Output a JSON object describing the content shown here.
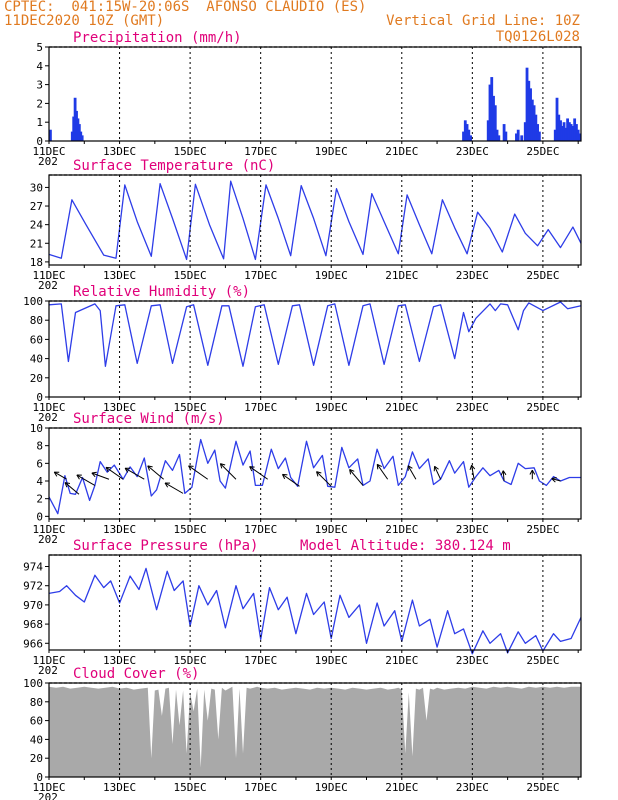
{
  "header": {
    "line1": "CPTEC:  041:15W-20:06S  AFONSO CLAUDIO (ES)",
    "line2": "11DEC2020 10Z (GMT)",
    "grid_note": "Vertical Grid Line: 10Z",
    "code": "TQ0126L028"
  },
  "colors": {
    "series": "#2e3de8",
    "title": "#e0007a",
    "header": "#e07a20",
    "cloud": "#a9a9a9",
    "bars": "#1f3ae6",
    "arrows": "#000000"
  },
  "x_axis": {
    "labels": [
      "11DEC",
      "13DEC",
      "15DEC",
      "17DEC",
      "19DEC",
      "21DEC",
      "23DEC",
      "25DEC"
    ],
    "label_days": [
      0,
      2,
      4,
      6,
      8,
      10,
      12,
      14
    ],
    "year_fragment": "202",
    "day_range": [
      0,
      15.08
    ]
  },
  "chart_data": [
    {
      "type": "bar",
      "title": "Precipitation (mm/h)",
      "ylim": [
        0,
        5
      ],
      "yticks": [
        0,
        1,
        2,
        3,
        4,
        5
      ],
      "bars": [
        {
          "day": 0.04,
          "value": 0.6
        },
        {
          "day": 0.66,
          "value": 0.5
        },
        {
          "day": 0.7,
          "value": 1.3
        },
        {
          "day": 0.74,
          "value": 2.3
        },
        {
          "day": 0.78,
          "value": 1.6
        },
        {
          "day": 0.82,
          "value": 1.2
        },
        {
          "day": 0.86,
          "value": 0.9
        },
        {
          "day": 0.9,
          "value": 0.5
        },
        {
          "day": 0.94,
          "value": 0.3
        },
        {
          "day": 11.75,
          "value": 0.5
        },
        {
          "day": 11.8,
          "value": 1.1
        },
        {
          "day": 11.85,
          "value": 0.9
        },
        {
          "day": 11.9,
          "value": 0.6
        },
        {
          "day": 11.95,
          "value": 0.3
        },
        {
          "day": 12.45,
          "value": 1.1
        },
        {
          "day": 12.5,
          "value": 3.0
        },
        {
          "day": 12.55,
          "value": 3.4
        },
        {
          "day": 12.6,
          "value": 2.4
        },
        {
          "day": 12.65,
          "value": 1.9
        },
        {
          "day": 12.7,
          "value": 0.6
        },
        {
          "day": 12.75,
          "value": 0.3
        },
        {
          "day": 12.9,
          "value": 0.9
        },
        {
          "day": 12.95,
          "value": 0.5
        },
        {
          "day": 13.25,
          "value": 0.4
        },
        {
          "day": 13.3,
          "value": 0.6
        },
        {
          "day": 13.4,
          "value": 0.3
        },
        {
          "day": 13.5,
          "value": 1.0
        },
        {
          "day": 13.55,
          "value": 3.9
        },
        {
          "day": 13.6,
          "value": 3.2
        },
        {
          "day": 13.65,
          "value": 2.8
        },
        {
          "day": 13.7,
          "value": 2.2
        },
        {
          "day": 13.75,
          "value": 1.9
        },
        {
          "day": 13.8,
          "value": 1.4
        },
        {
          "day": 13.85,
          "value": 0.9
        },
        {
          "day": 13.9,
          "value": 0.5
        },
        {
          "day": 14.35,
          "value": 0.6
        },
        {
          "day": 14.4,
          "value": 2.3
        },
        {
          "day": 14.45,
          "value": 1.4
        },
        {
          "day": 14.5,
          "value": 1.1
        },
        {
          "day": 14.55,
          "value": 0.8
        },
        {
          "day": 14.6,
          "value": 1.0
        },
        {
          "day": 14.65,
          "value": 0.7
        },
        {
          "day": 14.7,
          "value": 1.2
        },
        {
          "day": 14.75,
          "value": 1.0
        },
        {
          "day": 14.8,
          "value": 0.9
        },
        {
          "day": 14.85,
          "value": 0.8
        },
        {
          "day": 14.9,
          "value": 1.2
        },
        {
          "day": 14.95,
          "value": 0.9
        },
        {
          "day": 15.0,
          "value": 0.6
        },
        {
          "day": 15.05,
          "value": 0.4
        }
      ]
    },
    {
      "type": "line",
      "title": "Surface Temperature (nC)",
      "ylim": [
        17.5,
        32
      ],
      "yticks": [
        18,
        21,
        24,
        27,
        30
      ],
      "x": [
        0,
        0.35,
        0.65,
        1.05,
        1.55,
        1.9,
        2.15,
        2.5,
        2.9,
        3.15,
        3.5,
        3.9,
        4.15,
        4.55,
        4.95,
        5.15,
        5.5,
        5.85,
        6.15,
        6.5,
        6.85,
        7.15,
        7.5,
        7.85,
        8.15,
        8.5,
        8.9,
        9.15,
        9.5,
        9.9,
        10.15,
        10.5,
        10.85,
        11.15,
        11.5,
        11.85,
        12.15,
        12.5,
        12.85,
        13.2,
        13.5,
        13.85,
        14.15,
        14.5,
        14.85,
        15.08
      ],
      "y": [
        19.2,
        18.6,
        28.0,
        24.0,
        19.1,
        18.6,
        30.4,
        24.5,
        18.9,
        30.6,
        25.0,
        18.4,
        30.5,
        24.0,
        18.5,
        31.0,
        25.0,
        18.4,
        30.4,
        25.0,
        19.0,
        30.3,
        25.0,
        19.0,
        29.8,
        24.5,
        19.2,
        29.0,
        24.5,
        19.3,
        28.8,
        24.0,
        19.3,
        28.0,
        23.5,
        19.3,
        26.0,
        23.4,
        19.6,
        25.7,
        22.6,
        20.6,
        23.2,
        20.3,
        23.6,
        21.0
      ]
    },
    {
      "type": "line",
      "title": "Relative Humidity (%)",
      "ylim": [
        0,
        100
      ],
      "yticks": [
        0,
        20,
        40,
        60,
        80,
        100
      ],
      "x": [
        0,
        0.35,
        0.55,
        0.75,
        1.3,
        1.45,
        1.6,
        1.9,
        2.15,
        2.5,
        2.9,
        3.15,
        3.5,
        3.9,
        4.1,
        4.5,
        4.9,
        5.1,
        5.5,
        5.85,
        6.1,
        6.5,
        6.9,
        7.1,
        7.5,
        7.9,
        8.1,
        8.5,
        8.9,
        9.1,
        9.5,
        9.9,
        10.1,
        10.5,
        10.9,
        11.1,
        11.5,
        11.75,
        11.9,
        12.1,
        12.5,
        12.65,
        12.8,
        13.0,
        13.3,
        13.45,
        13.6,
        14.0,
        14.5,
        14.7,
        15.08
      ],
      "y": [
        96,
        97,
        37,
        88,
        97,
        90,
        32,
        95,
        96,
        35,
        95,
        96,
        35,
        94,
        96,
        33,
        95,
        95,
        32,
        94,
        96,
        34,
        95,
        96,
        33,
        95,
        97,
        33,
        95,
        97,
        34,
        95,
        96,
        37,
        94,
        96,
        40,
        88,
        68,
        82,
        97,
        90,
        97,
        96,
        70,
        90,
        98,
        90,
        99,
        92,
        95
      ]
    },
    {
      "type": "line",
      "title": "Surface Wind (m/s)",
      "ylim": [
        -0.3,
        10
      ],
      "yticks": [
        0,
        2,
        4,
        6,
        8,
        10
      ],
      "x": [
        0,
        0.25,
        0.45,
        0.6,
        0.75,
        0.95,
        1.15,
        1.3,
        1.45,
        1.65,
        1.85,
        2.1,
        2.3,
        2.5,
        2.7,
        2.9,
        3.05,
        3.3,
        3.5,
        3.7,
        3.85,
        4.05,
        4.3,
        4.5,
        4.7,
        4.85,
        5.0,
        5.3,
        5.5,
        5.7,
        5.85,
        6.05,
        6.3,
        6.5,
        6.7,
        6.85,
        7.05,
        7.3,
        7.5,
        7.75,
        7.9,
        8.1,
        8.3,
        8.5,
        8.75,
        8.9,
        9.1,
        9.3,
        9.5,
        9.75,
        9.9,
        10.1,
        10.3,
        10.5,
        10.75,
        10.9,
        11.1,
        11.35,
        11.5,
        11.75,
        11.9,
        12.1,
        12.3,
        12.5,
        12.75,
        12.9,
        13.1,
        13.3,
        13.5,
        13.75,
        13.9,
        14.1,
        14.3,
        14.5,
        14.75,
        15.08
      ],
      "y": [
        2.2,
        0.3,
        4.6,
        2.6,
        2.5,
        4.4,
        1.8,
        3.5,
        6.2,
        5.0,
        5.8,
        4.2,
        5.6,
        4.5,
        6.6,
        2.3,
        3.0,
        6.3,
        5.2,
        7.0,
        2.6,
        3.3,
        8.7,
        6.0,
        7.5,
        4.0,
        3.2,
        8.5,
        5.8,
        7.4,
        3.5,
        3.5,
        7.6,
        5.4,
        6.6,
        4.4,
        3.4,
        8.5,
        5.5,
        6.9,
        3.4,
        3.3,
        7.8,
        5.5,
        6.5,
        3.5,
        4.0,
        7.6,
        5.4,
        6.8,
        3.5,
        4.5,
        7.3,
        5.4,
        6.5,
        3.6,
        4.2,
        6.3,
        4.9,
        6.2,
        3.3,
        4.5,
        5.5,
        4.6,
        5.2,
        4.0,
        3.6,
        6.0,
        5.4,
        5.5,
        4.0,
        3.5,
        4.5,
        4.0,
        4.4,
        4.4
      ],
      "arrows": [
        {
          "day": 0.5,
          "len": 0.55,
          "dir": -30
        },
        {
          "day": 0.85,
          "len": 0.7,
          "dir": -40
        },
        {
          "day": 1.3,
          "len": 0.8,
          "dir": -30
        },
        {
          "day": 1.7,
          "len": 0.7,
          "dir": -20
        },
        {
          "day": 2.1,
          "len": 0.8,
          "dir": -35
        },
        {
          "day": 2.7,
          "len": 0.85,
          "dir": -30
        },
        {
          "day": 3.25,
          "len": 0.8,
          "dir": -40
        },
        {
          "day": 3.8,
          "len": 0.8,
          "dir": -30
        },
        {
          "day": 4.5,
          "len": 0.9,
          "dir": -35
        },
        {
          "day": 5.3,
          "len": 0.85,
          "dir": -45
        },
        {
          "day": 6.2,
          "len": 0.85,
          "dir": -35
        },
        {
          "day": 7.1,
          "len": 0.8,
          "dir": -35
        },
        {
          "day": 8.0,
          "len": 0.8,
          "dir": -45
        },
        {
          "day": 8.9,
          "len": 0.8,
          "dir": -50
        },
        {
          "day": 9.6,
          "len": 0.7,
          "dir": -55
        },
        {
          "day": 10.4,
          "len": 0.6,
          "dir": -60
        },
        {
          "day": 11.1,
          "len": 0.55,
          "dir": -65
        },
        {
          "day": 12.05,
          "len": 0.55,
          "dir": -80
        },
        {
          "day": 12.9,
          "len": 0.4,
          "dir": -85
        },
        {
          "day": 13.7,
          "len": 0.35,
          "dir": -90
        },
        {
          "day": 14.5,
          "len": 0.35,
          "dir": -15
        }
      ]
    },
    {
      "type": "line",
      "title": "Surface Pressure (hPa)",
      "annotation": "Model Altitude: 380.124 m",
      "ylim": [
        965.3,
        975.2
      ],
      "yticks": [
        966,
        968,
        970,
        972,
        974
      ],
      "x": [
        0,
        0.3,
        0.5,
        0.75,
        1.0,
        1.3,
        1.55,
        1.75,
        2.0,
        2.3,
        2.55,
        2.75,
        3.05,
        3.35,
        3.55,
        3.8,
        4.0,
        4.25,
        4.5,
        4.75,
        5.0,
        5.3,
        5.5,
        5.8,
        6.0,
        6.25,
        6.5,
        6.75,
        7.0,
        7.3,
        7.5,
        7.8,
        8.0,
        8.25,
        8.5,
        8.8,
        9.0,
        9.3,
        9.5,
        9.8,
        10.0,
        10.3,
        10.5,
        10.8,
        11.0,
        11.3,
        11.5,
        11.75,
        12.0,
        12.3,
        12.5,
        12.8,
        13.0,
        13.3,
        13.5,
        13.8,
        14.0,
        14.3,
        14.5,
        14.8,
        15.08
      ],
      "y": [
        971.2,
        971.4,
        972.0,
        971.0,
        970.3,
        973.1,
        971.8,
        972.5,
        970.2,
        973.0,
        971.6,
        973.8,
        969.5,
        973.5,
        971.5,
        972.5,
        967.8,
        972.0,
        970.0,
        971.5,
        967.6,
        972.0,
        969.6,
        971.2,
        966.4,
        971.8,
        969.5,
        970.8,
        967.0,
        971.2,
        969.0,
        970.3,
        966.5,
        971.0,
        968.7,
        970.0,
        966.0,
        970.2,
        967.8,
        969.4,
        966.2,
        970.5,
        967.8,
        968.5,
        965.6,
        969.4,
        967.0,
        967.5,
        964.9,
        967.3,
        966.0,
        967.0,
        965.0,
        967.2,
        966.0,
        966.8,
        965.2,
        967.0,
        966.2,
        966.5,
        968.7
      ]
    },
    {
      "type": "area",
      "title": "Cloud Cover (%)",
      "ylim": [
        0,
        100
      ],
      "yticks": [
        0,
        20,
        40,
        60,
        80,
        100
      ],
      "x": [
        0,
        0.2,
        0.4,
        0.6,
        0.8,
        1.0,
        1.2,
        1.4,
        1.6,
        1.8,
        2.0,
        2.2,
        2.4,
        2.6,
        2.8,
        2.9,
        3.0,
        3.1,
        3.2,
        3.3,
        3.4,
        3.5,
        3.6,
        3.7,
        3.8,
        3.9,
        4.0,
        4.1,
        4.2,
        4.3,
        4.4,
        4.5,
        4.6,
        4.7,
        4.8,
        4.9,
        5.0,
        5.1,
        5.2,
        5.3,
        5.4,
        5.5,
        5.6,
        5.7,
        5.8,
        5.9,
        6.0,
        6.2,
        6.4,
        6.6,
        6.8,
        7.0,
        7.2,
        7.4,
        7.6,
        7.8,
        8.0,
        8.2,
        8.4,
        8.6,
        8.8,
        9.0,
        9.2,
        9.4,
        9.6,
        9.8,
        9.9,
        10.0,
        10.1,
        10.2,
        10.3,
        10.4,
        10.5,
        10.6,
        10.7,
        10.8,
        10.9,
        11.0,
        11.2,
        11.4,
        11.6,
        11.8,
        12.0,
        12.2,
        12.4,
        12.6,
        12.8,
        13.0,
        13.2,
        13.4,
        13.6,
        13.8,
        14.0,
        14.2,
        14.4,
        14.6,
        14.8,
        15.08
      ],
      "y": [
        96,
        95,
        96,
        94,
        95,
        96,
        95,
        94,
        95,
        96,
        94,
        95,
        93,
        94,
        95,
        20,
        92,
        93,
        65,
        94,
        95,
        35,
        93,
        55,
        92,
        25,
        90,
        70,
        94,
        10,
        93,
        60,
        94,
        93,
        40,
        95,
        92,
        94,
        96,
        20,
        94,
        25,
        95,
        94,
        95,
        96,
        95,
        94,
        95,
        93,
        94,
        95,
        94,
        93,
        95,
        94,
        95,
        94,
        93,
        95,
        94,
        93,
        94,
        95,
        93,
        94,
        95,
        93,
        25,
        90,
        22,
        94,
        93,
        95,
        60,
        94,
        93,
        95,
        93,
        94,
        95,
        94,
        96,
        95,
        94,
        96,
        95,
        96,
        95,
        94,
        96,
        95,
        96,
        95,
        96,
        95,
        96,
        96
      ]
    }
  ]
}
